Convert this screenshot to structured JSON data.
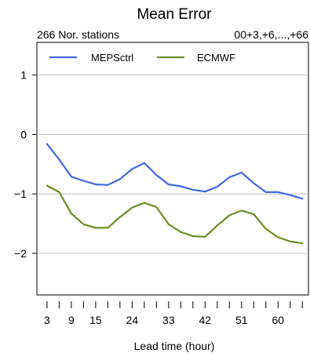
{
  "chart_data": {
    "type": "line",
    "title": "Mean Error",
    "subtitle_left": "266 Nor. stations",
    "subtitle_right": "00+3,+6,...,+66",
    "xlabel": "Lead time (hour)",
    "ylabel": "",
    "x": [
      3,
      6,
      9,
      12,
      15,
      18,
      21,
      24,
      27,
      30,
      33,
      36,
      39,
      42,
      45,
      48,
      51,
      54,
      57,
      60,
      63,
      66
    ],
    "x_tick_labels": [
      "3",
      "9",
      "15",
      "24",
      "33",
      "42",
      "51",
      "60"
    ],
    "x_tick_values": [
      3,
      9,
      15,
      24,
      33,
      42,
      51,
      60
    ],
    "y_tick_labels": [
      "1",
      "0",
      "−1",
      "−2"
    ],
    "y_tick_values": [
      1,
      0,
      -1,
      -2
    ],
    "xlim": [
      0.5,
      67.5
    ],
    "ylim": [
      -2.7,
      1.55
    ],
    "grid": true,
    "legend_position": "top-left",
    "series": [
      {
        "name": "MEPSctrl",
        "color": "#4169e1",
        "values": [
          -0.16,
          -0.42,
          -0.71,
          -0.78,
          -0.84,
          -0.85,
          -0.75,
          -0.58,
          -0.48,
          -0.68,
          -0.84,
          -0.87,
          -0.93,
          -0.96,
          -0.88,
          -0.72,
          -0.64,
          -0.82,
          -0.97,
          -0.97,
          -1.02,
          -1.08
        ]
      },
      {
        "name": "ECMWF",
        "color": "#6b8e23",
        "values": [
          -0.86,
          -0.97,
          -1.33,
          -1.51,
          -1.57,
          -1.57,
          -1.39,
          -1.23,
          -1.15,
          -1.22,
          -1.51,
          -1.64,
          -1.71,
          -1.72,
          -1.53,
          -1.36,
          -1.28,
          -1.34,
          -1.59,
          -1.73,
          -1.8,
          -1.83
        ]
      }
    ]
  }
}
